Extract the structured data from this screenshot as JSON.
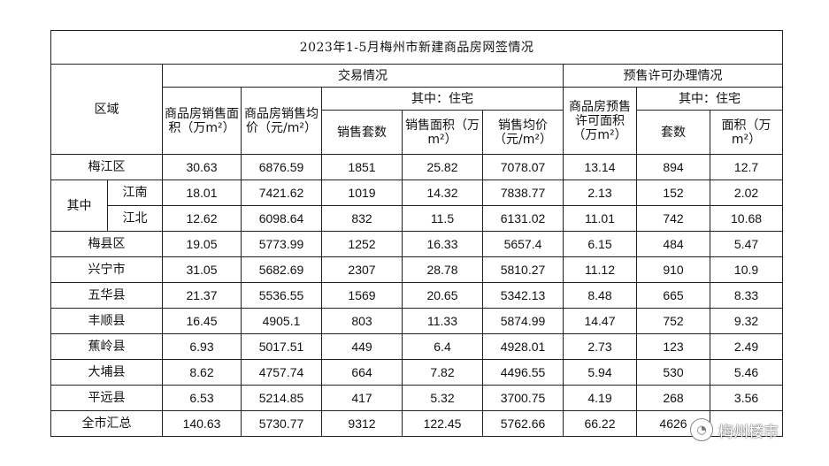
{
  "title": "2023年1-5月梅州市新建商品房网签情况",
  "headers": {
    "region": "区域",
    "trade": "交易情况",
    "presale": "预售许可办理情况",
    "of_which_residential": "其中：住宅",
    "cols": {
      "area": "商品房销售面积（万m²）",
      "avg_price": "商品房销售均价（元/m²）",
      "res_units": "销售套数",
      "res_area": "销售面积（万m²）",
      "res_price": "销售均价（元/m²）",
      "presale_area": "商品房预售许可面积（万m²）",
      "presale_units": "套数",
      "presale_res_area": "面积（万m²）"
    }
  },
  "subgroup_label": "其中",
  "rows": [
    {
      "region": "梅江区",
      "area": "30.63",
      "avg_price": "6876.59",
      "res_units": "1851",
      "res_area": "25.82",
      "res_price": "7078.07",
      "presale_area": "13.14",
      "presale_units": "894",
      "presale_res_area": "12.7"
    },
    {
      "region": "江南",
      "area": "18.01",
      "avg_price": "7421.62",
      "res_units": "1019",
      "res_area": "14.32",
      "res_price": "7838.77",
      "presale_area": "2.13",
      "presale_units": "152",
      "presale_res_area": "2.02"
    },
    {
      "region": "江北",
      "area": "12.62",
      "avg_price": "6098.64",
      "res_units": "832",
      "res_area": "11.5",
      "res_price": "6131.02",
      "presale_area": "11.01",
      "presale_units": "742",
      "presale_res_area": "10.68"
    },
    {
      "region": "梅县区",
      "area": "19.05",
      "avg_price": "5773.99",
      "res_units": "1252",
      "res_area": "16.33",
      "res_price": "5657.4",
      "presale_area": "6.15",
      "presale_units": "484",
      "presale_res_area": "5.47"
    },
    {
      "region": "兴宁市",
      "area": "31.05",
      "avg_price": "5682.69",
      "res_units": "2307",
      "res_area": "28.78",
      "res_price": "5810.27",
      "presale_area": "11.12",
      "presale_units": "910",
      "presale_res_area": "10.9"
    },
    {
      "region": "五华县",
      "area": "21.37",
      "avg_price": "5536.55",
      "res_units": "1569",
      "res_area": "20.65",
      "res_price": "5342.13",
      "presale_area": "8.48",
      "presale_units": "665",
      "presale_res_area": "8.33"
    },
    {
      "region": "丰顺县",
      "area": "16.45",
      "avg_price": "4905.1",
      "res_units": "803",
      "res_area": "11.33",
      "res_price": "5874.99",
      "presale_area": "14.47",
      "presale_units": "752",
      "presale_res_area": "9.32"
    },
    {
      "region": "蕉岭县",
      "area": "6.93",
      "avg_price": "5017.51",
      "res_units": "449",
      "res_area": "6.4",
      "res_price": "4928.01",
      "presale_area": "2.73",
      "presale_units": "123",
      "presale_res_area": "2.49"
    },
    {
      "region": "大埔县",
      "area": "8.62",
      "avg_price": "4757.74",
      "res_units": "664",
      "res_area": "7.82",
      "res_price": "4496.55",
      "presale_area": "5.94",
      "presale_units": "530",
      "presale_res_area": "5.46"
    },
    {
      "region": "平远县",
      "area": "6.53",
      "avg_price": "5214.85",
      "res_units": "417",
      "res_area": "5.32",
      "res_price": "3700.75",
      "presale_area": "4.19",
      "presale_units": "268",
      "presale_res_area": "3.56"
    },
    {
      "region": "全市汇总",
      "area": "140.63",
      "avg_price": "5730.77",
      "res_units": "9312",
      "res_area": "122.45",
      "res_price": "5762.66",
      "presale_area": "66.22",
      "presale_units": "4626",
      "presale_res_area": ""
    }
  ],
  "watermark": {
    "text": "梅州楼市",
    "icon": "wechat-icon"
  }
}
